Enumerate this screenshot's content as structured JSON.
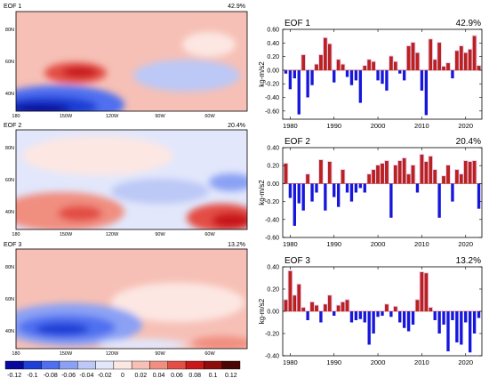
{
  "colors": {
    "pos_bar": "#c0201c",
    "neg_bar": "#1616dc",
    "bar_halo": "#f4cff0"
  },
  "colorbar": {
    "labels": [
      "-0.12",
      "-0.1",
      "-0.08",
      "-0.06",
      "-0.04",
      "-0.02",
      "0",
      "0.02",
      "0.04",
      "0.06",
      "0.08",
      "0.1",
      "0.12"
    ],
    "colors": [
      "#08089b",
      "#1f3fd6",
      "#4f6ff0",
      "#8aa1f4",
      "#bcc8f6",
      "#e2e7fb",
      "#fde7e3",
      "#f6c0b6",
      "#f08e80",
      "#e34e45",
      "#c8191a",
      "#8e0c0c",
      "#4a0505"
    ]
  },
  "maps": {
    "lat_labels": [
      "80N",
      "60N",
      "40N"
    ],
    "lon_labels": [
      "180",
      "150W",
      "120W",
      "90W",
      "60W"
    ],
    "panels": [
      {
        "title": "EOF 1",
        "pct": "42.9%"
      },
      {
        "title": "EOF 2",
        "pct": "20.4%"
      },
      {
        "title": "EOF 3",
        "pct": "13.2%"
      }
    ]
  },
  "chart_data": [
    {
      "type": "bar",
      "title": "EOF 1",
      "annotation": "42.9%",
      "ylabel": "kg-m/s2",
      "x": [
        1979,
        1980,
        1981,
        1982,
        1983,
        1984,
        1985,
        1986,
        1987,
        1988,
        1989,
        1990,
        1991,
        1992,
        1993,
        1994,
        1995,
        1996,
        1997,
        1998,
        1999,
        2000,
        2001,
        2002,
        2003,
        2004,
        2005,
        2006,
        2007,
        2008,
        2009,
        2010,
        2011,
        2012,
        2013,
        2014,
        2015,
        2016,
        2017,
        2018,
        2019,
        2020,
        2021,
        2022,
        2023
      ],
      "values": [
        -0.05,
        -0.28,
        -0.12,
        -0.65,
        0.22,
        -0.4,
        -0.22,
        0.08,
        0.22,
        0.47,
        0.38,
        -0.18,
        0.15,
        0.08,
        -0.1,
        -0.22,
        -0.15,
        -0.48,
        0.06,
        0.15,
        0.12,
        -0.15,
        -0.2,
        -0.3,
        0.2,
        0.12,
        -0.05,
        -0.15,
        0.35,
        0.4,
        0.25,
        -0.3,
        -0.66,
        0.45,
        0.15,
        0.4,
        0.05,
        0.1,
        -0.12,
        0.28,
        0.35,
        0.25,
        0.3,
        0.5,
        0.06
      ],
      "xticks": [
        1980,
        1990,
        2000,
        2010,
        2020
      ],
      "yticks": [
        "0.60",
        "0.40",
        "0.20",
        "0.00",
        "-0.20",
        "-0.40",
        "-0.60"
      ],
      "ylim": [
        -0.72,
        0.6
      ]
    },
    {
      "type": "bar",
      "title": "EOF 2",
      "annotation": "20.4%",
      "ylabel": "kg-m/s2",
      "x": [
        1979,
        1980,
        1981,
        1982,
        1983,
        1984,
        1985,
        1986,
        1987,
        1988,
        1989,
        1990,
        1991,
        1992,
        1993,
        1994,
        1995,
        1996,
        1997,
        1998,
        1999,
        2000,
        2001,
        2002,
        2003,
        2004,
        2005,
        2006,
        2007,
        2008,
        2009,
        2010,
        2011,
        2012,
        2013,
        2014,
        2015,
        2016,
        2017,
        2018,
        2019,
        2020,
        2021,
        2022,
        2023
      ],
      "values": [
        0.22,
        -0.16,
        -0.47,
        -0.22,
        -0.3,
        0.1,
        -0.2,
        -0.1,
        0.26,
        -0.3,
        0.24,
        -0.15,
        -0.26,
        0.15,
        -0.1,
        -0.2,
        -0.1,
        -0.05,
        -0.1,
        0.1,
        0.15,
        0.2,
        0.22,
        0.25,
        -0.38,
        0.2,
        0.25,
        0.28,
        0.1,
        0.2,
        -0.1,
        0.32,
        0.24,
        0.3,
        0.15,
        -0.38,
        0.08,
        0.2,
        -0.2,
        0.15,
        0.1,
        0.25,
        0.24,
        0.25,
        -0.28
      ],
      "xticks": [
        1980,
        1990,
        2000,
        2010,
        2020
      ],
      "yticks": [
        "0.40",
        "0.20",
        "0.00",
        "-0.20",
        "-0.40",
        "-0.60"
      ],
      "ylim": [
        -0.6,
        0.4
      ]
    },
    {
      "type": "bar",
      "title": "EOF 3",
      "annotation": "13.2%",
      "ylabel": "kg-m/s2",
      "x": [
        1979,
        1980,
        1981,
        1982,
        1983,
        1984,
        1985,
        1986,
        1987,
        1988,
        1989,
        1990,
        1991,
        1992,
        1993,
        1994,
        1995,
        1996,
        1997,
        1998,
        1999,
        2000,
        2001,
        2002,
        2003,
        2004,
        2005,
        2006,
        2007,
        2008,
        2009,
        2010,
        2011,
        2012,
        2013,
        2014,
        2015,
        2016,
        2017,
        2018,
        2019,
        2020,
        2021,
        2022,
        2023
      ],
      "values": [
        0.1,
        0.36,
        0.14,
        0.24,
        0.03,
        -0.08,
        0.08,
        0.05,
        -0.1,
        0.06,
        0.14,
        -0.04,
        0.05,
        0.08,
        0.1,
        -0.1,
        -0.08,
        -0.07,
        -0.1,
        -0.3,
        -0.2,
        -0.05,
        -0.04,
        0.06,
        -0.05,
        0.04,
        -0.1,
        -0.15,
        -0.18,
        -0.12,
        0.1,
        0.35,
        0.34,
        0.03,
        -0.08,
        -0.2,
        -0.12,
        -0.36,
        -0.08,
        -0.28,
        -0.3,
        -0.1,
        -0.37,
        -0.2,
        -0.06
      ],
      "xticks": [
        1980,
        1990,
        2000,
        2010,
        2020
      ],
      "yticks": [
        "0.40",
        "0.20",
        "0.00",
        "-0.20",
        "-0.40"
      ],
      "ylim": [
        -0.4,
        0.4
      ]
    }
  ]
}
